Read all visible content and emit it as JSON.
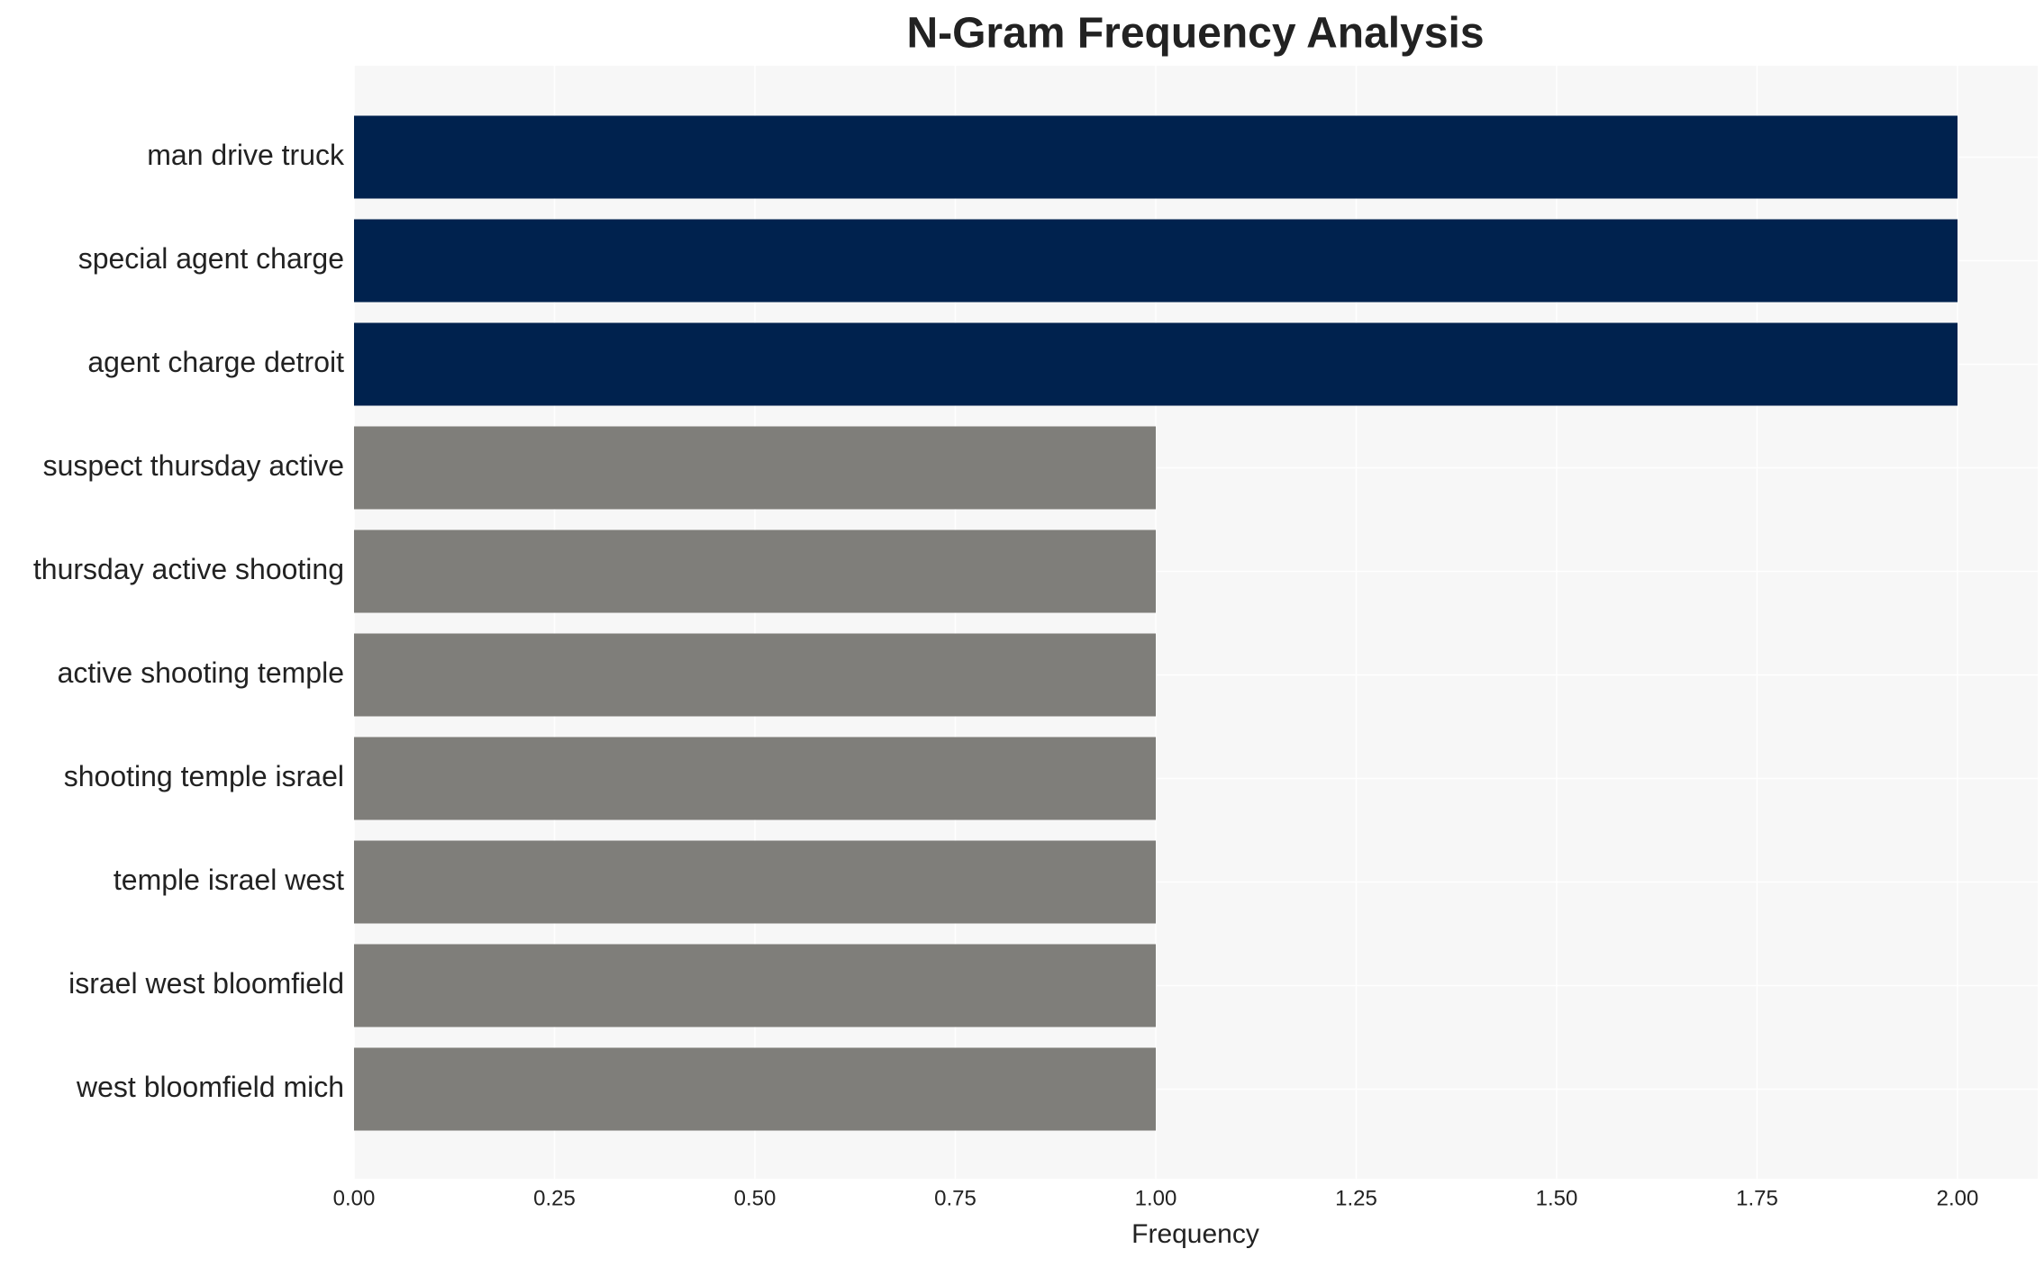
{
  "chart_data": {
    "type": "barh",
    "title": "N-Gram Frequency Analysis",
    "x_label": "Frequency",
    "categories": [
      "man drive truck",
      "special agent charge",
      "agent charge detroit",
      "suspect thursday active",
      "thursday active shooting",
      "active shooting temple",
      "shooting temple israel",
      "temple israel west",
      "israel west bloomfield",
      "west bloomfield mich"
    ],
    "values": [
      2,
      2,
      2,
      1,
      1,
      1,
      1,
      1,
      1,
      1
    ],
    "colors": [
      "#00224e",
      "#00224e",
      "#00224e",
      "#7f7e7a",
      "#7f7e7a",
      "#7f7e7a",
      "#7f7e7a",
      "#7f7e7a",
      "#7f7e7a",
      "#7f7e7a"
    ],
    "xlim": [
      0,
      2.1
    ],
    "xticks": [
      {
        "value": 0,
        "label": "0.00"
      },
      {
        "value": 0.25,
        "label": "0.25"
      },
      {
        "value": 0.5,
        "label": "0.50"
      },
      {
        "value": 0.75,
        "label": "0.75"
      },
      {
        "value": 1,
        "label": "1.00"
      },
      {
        "value": 1.25,
        "label": "1.25"
      },
      {
        "value": 1.5,
        "label": "1.50"
      },
      {
        "value": 1.75,
        "label": "1.75"
      },
      {
        "value": 2,
        "label": "2.00"
      }
    ],
    "grid": true
  }
}
